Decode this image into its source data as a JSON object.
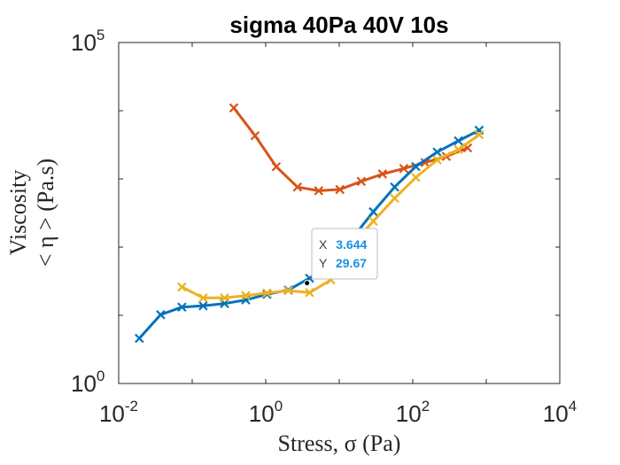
{
  "chart_data": {
    "type": "line",
    "title": "sigma 40Pa 40V 10s",
    "xlabel": "Stress, σ (Pa)",
    "ylabel_line1": "Viscosity",
    "ylabel_line2": "< η > (Pa.s)",
    "xscale": "log",
    "yscale": "log",
    "xlim": [
      0.01,
      10000
    ],
    "ylim": [
      1,
      100000
    ],
    "x_ticks": [
      {
        "value": 0.01,
        "base": "10",
        "exp": "-2"
      },
      {
        "value": 1,
        "base": "10",
        "exp": "0"
      },
      {
        "value": 100,
        "base": "10",
        "exp": "2"
      },
      {
        "value": 10000,
        "base": "10",
        "exp": "4"
      }
    ],
    "y_ticks": [
      {
        "value": 1,
        "base": "10",
        "exp": "0"
      },
      {
        "value": 100000,
        "base": "10",
        "exp": "5"
      }
    ],
    "grid": false,
    "series": [
      {
        "color": "#D95319",
        "x": [
          0.368,
          0.716,
          1.39,
          2.7,
          5.26,
          10.2,
          19.9,
          38.8,
          75.5,
          147,
          286,
          557
        ],
        "y": [
          11000,
          4300,
          1510,
          760,
          670,
          700,
          920,
          1180,
          1420,
          1740,
          2140,
          2850
        ]
      },
      {
        "color": "#0072BD",
        "x": [
          0.0191,
          0.0372,
          0.0725,
          0.141,
          0.275,
          0.535,
          1.04,
          2.03,
          3.95,
          7.68,
          15,
          29.1,
          56.7,
          110,
          215,
          418,
          800
        ],
        "y": [
          4.6,
          10.2,
          13.2,
          13.8,
          14.9,
          16.8,
          20.3,
          23.5,
          35,
          58,
          135,
          330,
          760,
          1520,
          2480,
          3620,
          5170
        ]
      },
      {
        "color": "#EDB120",
        "x": [
          0.0725,
          0.141,
          0.275,
          0.535,
          1.04,
          2.03,
          3.95,
          7.68,
          15,
          29.1,
          56.7,
          110,
          215,
          418,
          800
        ],
        "y": [
          26,
          18,
          18,
          19.5,
          21.2,
          23,
          21.5,
          33,
          110,
          240,
          520,
          1050,
          1900,
          2700,
          4450
        ]
      }
    ],
    "datatip": {
      "x_label": "X",
      "x_value": "3.644",
      "y_label": "Y",
      "y_value": "29.67",
      "x": 3.644,
      "y": 29.67
    }
  }
}
